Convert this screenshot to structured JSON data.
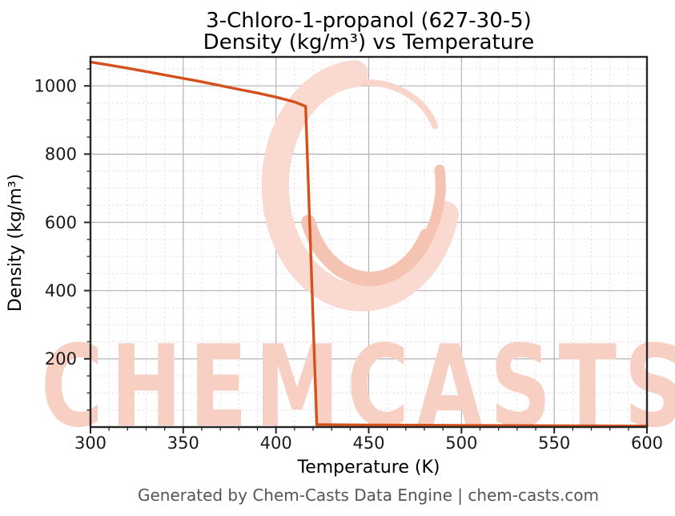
{
  "header": {
    "title_line1": "3-Chloro-1-propanol (627-30-5)",
    "title_line2": "Density (kg/m³) vs Temperature"
  },
  "footer": {
    "text": "Generated by Chem-Casts Data Engine | chem-casts.com"
  },
  "watermark": {
    "text": "CHEMCASTS",
    "logo": "chemcasts-swirl-logo"
  },
  "colors": {
    "line": "#d4511e",
    "watermark_text": "#f7cfc3",
    "logo_ring": "#f9d9d0",
    "logo_crescent": "#f5c3b2",
    "logo_thin_stroke": "#f8d4c9",
    "grid_major": "#b3b3b3",
    "grid_minor": "#dcdcdc",
    "spine": "#262626",
    "tick_label": "#1a1a1a",
    "axis_label": "#000000",
    "footer_text": "#555555"
  },
  "chart_data": {
    "type": "line",
    "title": "3-Chloro-1-propanol (627-30-5) — Density (kg/m³) vs Temperature",
    "xlabel": "Temperature (K)",
    "ylabel": "Density (kg/m³)",
    "xlim": [
      300,
      600
    ],
    "ylim": [
      0,
      1085
    ],
    "xticks": [
      300,
      350,
      400,
      450,
      500,
      550,
      600
    ],
    "xtick_labels": [
      "300",
      "350",
      "400",
      "450",
      "500",
      "550",
      "600"
    ],
    "yticks": [
      200,
      400,
      600,
      800,
      1000
    ],
    "ytick_labels": [
      "200",
      "400",
      "600",
      "800",
      "1000"
    ],
    "x_minor_step": 10,
    "y_minor_step": 50,
    "grid": "major-solid-minor-dashed",
    "legend_position": "none",
    "series": [
      {
        "name": "density",
        "x": [
          300,
          310,
          320,
          330,
          340,
          350,
          360,
          370,
          380,
          390,
          400,
          410,
          416,
          422,
          450,
          500,
          550,
          600
        ],
        "y": [
          1070,
          1061,
          1052,
          1042,
          1032,
          1022,
          1012,
          1001,
          990,
          979,
          967,
          953,
          940,
          7,
          6,
          5,
          4,
          3
        ]
      }
    ]
  }
}
